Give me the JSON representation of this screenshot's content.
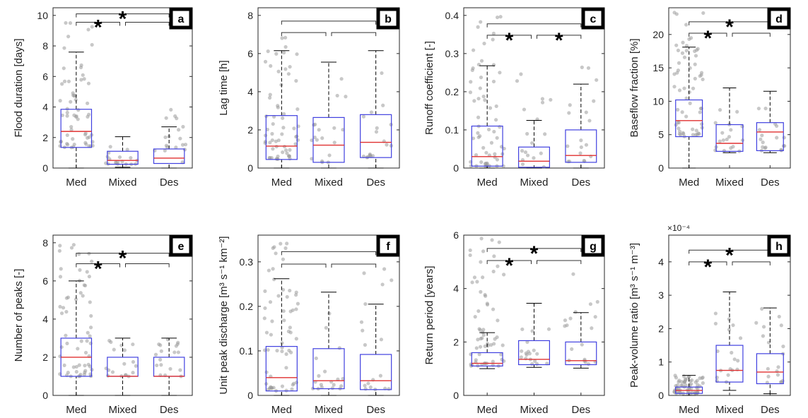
{
  "chart_data": [
    {
      "type": "box",
      "panel": "a",
      "ylabel": "Flood duration [days]",
      "ylim": [
        0,
        10.5
      ],
      "yticks": [
        0,
        2,
        4,
        6,
        8,
        10
      ],
      "tick_labels": [
        "0",
        "2",
        "4",
        "6",
        "8",
        "10"
      ],
      "categories": [
        "Med",
        "Mixed",
        "Des"
      ],
      "boxes": [
        {
          "min": 0,
          "q1": 1.35,
          "median": 2.4,
          "q3": 3.85,
          "max": 7.6
        },
        {
          "min": 0.05,
          "q1": 0.25,
          "median": 0.5,
          "q3": 1.1,
          "max": 2.05
        },
        {
          "min": 0,
          "q1": 0.3,
          "median": 0.65,
          "q3": 1.25,
          "max": 2.7
        }
      ],
      "scatter_max": [
        10.2,
        2.0,
        4.0
      ],
      "significance": [
        {
          "from": 0,
          "to": 1,
          "star": true
        },
        {
          "from": 1,
          "to": 2,
          "star": false
        },
        {
          "from": 0,
          "to": 2,
          "star": true
        }
      ],
      "brackets_y": [
        9.55,
        10.1
      ]
    },
    {
      "type": "box",
      "panel": "b",
      "ylabel": "Lag time [h]",
      "ylim": [
        0,
        8.4
      ],
      "yticks": [
        0,
        2,
        4,
        6,
        8
      ],
      "tick_labels": [
        "0",
        "2",
        "4",
        "6",
        "8"
      ],
      "categories": [
        "Med",
        "Mixed",
        "Des"
      ],
      "boxes": [
        {
          "min": 0,
          "q1": 0.45,
          "median": 1.15,
          "q3": 2.75,
          "max": 6.15
        },
        {
          "min": 0,
          "q1": 0.3,
          "median": 1.2,
          "q3": 2.65,
          "max": 5.55
        },
        {
          "min": 0,
          "q1": 0.55,
          "median": 1.35,
          "q3": 2.8,
          "max": 6.15
        }
      ],
      "scatter_max": [
        7.3,
        5.0,
        6.0
      ],
      "significance": [
        {
          "from": 0,
          "to": 1,
          "star": false
        },
        {
          "from": 1,
          "to": 2,
          "star": false
        },
        {
          "from": 0,
          "to": 2,
          "star": false
        }
      ],
      "brackets_y": [
        7.1,
        7.7
      ]
    },
    {
      "type": "box",
      "panel": "c",
      "ylabel": "Runoff coefficient [-]",
      "ylim": [
        0,
        0.42
      ],
      "yticks": [
        0,
        0.1,
        0.2,
        0.3,
        0.4
      ],
      "tick_labels": [
        "0",
        "0.1",
        "0.2",
        "0.3",
        "0.4"
      ],
      "categories": [
        "Med",
        "Mixed",
        "Des"
      ],
      "boxes": [
        {
          "min": 0,
          "q1": 0.005,
          "median": 0.03,
          "q3": 0.11,
          "max": 0.268
        },
        {
          "min": 0,
          "q1": 0.002,
          "median": 0.018,
          "q3": 0.055,
          "max": 0.125
        },
        {
          "min": 0,
          "q1": 0.015,
          "median": 0.033,
          "q3": 0.1,
          "max": 0.22
        }
      ],
      "scatter_max": [
        0.42,
        0.25,
        0.31
      ],
      "significance": [
        {
          "from": 0,
          "to": 1,
          "star": true
        },
        {
          "from": 1,
          "to": 2,
          "star": true
        },
        {
          "from": 0,
          "to": 2,
          "star": false
        }
      ],
      "brackets_y": [
        0.348,
        0.378
      ]
    },
    {
      "type": "box",
      "panel": "d",
      "ylabel": "Baseflow fraction [%]",
      "ylim": [
        0,
        24
      ],
      "yticks": [
        0,
        5,
        10,
        15,
        20
      ],
      "tick_labels": [
        "0",
        "5",
        "10",
        "15",
        "20"
      ],
      "categories": [
        "Med",
        "Mixed",
        "Des"
      ],
      "boxes": [
        {
          "min": 0,
          "q1": 4.7,
          "median": 7.1,
          "q3": 10.2,
          "max": 18.1
        },
        {
          "min": 2.3,
          "q1": 2.5,
          "median": 3.7,
          "q3": 6.5,
          "max": 12.0
        },
        {
          "min": 2.3,
          "q1": 2.6,
          "median": 5.4,
          "q3": 6.8,
          "max": 11.5
        }
      ],
      "scatter_max": [
        24.0,
        9.0,
        10.0
      ],
      "significance": [
        {
          "from": 0,
          "to": 1,
          "star": true
        },
        {
          "from": 1,
          "to": 2,
          "star": false
        },
        {
          "from": 0,
          "to": 2,
          "star": true
        }
      ],
      "brackets_y": [
        20.2,
        21.9
      ]
    },
    {
      "type": "box",
      "panel": "e",
      "ylabel": "Number of peaks [-]",
      "ylim": [
        0,
        8.4
      ],
      "yticks": [
        0,
        2,
        4,
        6,
        8
      ],
      "tick_labels": [
        "0",
        "2",
        "4",
        "6",
        "8"
      ],
      "categories": [
        "Med",
        "Mixed",
        "Des"
      ],
      "boxes": [
        {
          "min": 0,
          "q1": 1,
          "median": 2,
          "q3": 3,
          "max": 6
        },
        {
          "min": 0,
          "q1": 1,
          "median": 1,
          "q3": 2,
          "max": 3
        },
        {
          "min": 0,
          "q1": 1,
          "median": 1,
          "q3": 2,
          "max": 3
        }
      ],
      "scatter_max": [
        8.0,
        3.0,
        3.0
      ],
      "significance": [
        {
          "from": 0,
          "to": 1,
          "star": true
        },
        {
          "from": 1,
          "to": 2,
          "star": false
        },
        {
          "from": 0,
          "to": 2,
          "star": true
        }
      ],
      "brackets_y": [
        6.9,
        7.45
      ]
    },
    {
      "type": "box",
      "panel": "f",
      "ylabel": "Unit peak discharge [m³ s⁻¹ km⁻²]",
      "ylim": [
        0,
        0.36
      ],
      "yticks": [
        0,
        0.1,
        0.2,
        0.3
      ],
      "tick_labels": [
        "0",
        "0.1",
        "0.2",
        "0.3"
      ],
      "categories": [
        "Med",
        "Mixed",
        "Des"
      ],
      "boxes": [
        {
          "min": 0,
          "q1": 0.01,
          "median": 0.04,
          "q3": 0.11,
          "max": 0.262
        },
        {
          "min": 0,
          "q1": 0.015,
          "median": 0.033,
          "q3": 0.105,
          "max": 0.232
        },
        {
          "min": 0,
          "q1": 0.013,
          "median": 0.033,
          "q3": 0.092,
          "max": 0.205
        }
      ],
      "scatter_max": [
        0.35,
        0.19,
        0.29
      ],
      "significance": [
        {
          "from": 0,
          "to": 1,
          "star": false
        },
        {
          "from": 1,
          "to": 2,
          "star": false
        },
        {
          "from": 0,
          "to": 2,
          "star": false
        }
      ],
      "brackets_y": [
        0.295,
        0.323
      ]
    },
    {
      "type": "box",
      "panel": "g",
      "ylabel": "Return period [years]",
      "ylim": [
        0,
        6
      ],
      "yticks": [
        0,
        2,
        4,
        6
      ],
      "tick_labels": [
        "0",
        "2",
        "4",
        "6"
      ],
      "categories": [
        "Med",
        "Mixed",
        "Des"
      ],
      "boxes": [
        {
          "min": 1.0,
          "q1": 1.1,
          "median": 1.2,
          "q3": 1.6,
          "max": 2.35
        },
        {
          "min": 1.05,
          "q1": 1.15,
          "median": 1.35,
          "q3": 2.05,
          "max": 3.45
        },
        {
          "min": 1.02,
          "q1": 1.15,
          "median": 1.3,
          "q3": 2.0,
          "max": 3.1
        }
      ],
      "scatter_max": [
        6.0,
        2.5,
        5.5
      ],
      "significance": [
        {
          "from": 0,
          "to": 1,
          "star": true
        },
        {
          "from": 1,
          "to": 2,
          "star": false
        },
        {
          "from": 0,
          "to": 2,
          "star": true
        }
      ],
      "brackets_y": [
        5.05,
        5.5
      ]
    },
    {
      "type": "box",
      "panel": "h",
      "ylabel": "Peak-volume ratio [m³ s⁻¹ m⁻³]",
      "exponent": "×10⁻⁴",
      "ylim": [
        0,
        4.8
      ],
      "yticks": [
        0,
        1,
        2,
        3,
        4
      ],
      "tick_labels": [
        "0",
        "1",
        "2",
        "3",
        "4"
      ],
      "categories": [
        "Med",
        "Mixed",
        "Des"
      ],
      "boxes": [
        {
          "min": 0,
          "q1": 0.06,
          "median": 0.15,
          "q3": 0.25,
          "max": 0.6
        },
        {
          "min": 0.15,
          "q1": 0.4,
          "median": 0.75,
          "q3": 1.5,
          "max": 3.1
        },
        {
          "min": 0.05,
          "q1": 0.35,
          "median": 0.7,
          "q3": 1.25,
          "max": 2.62
        }
      ],
      "scatter_max": [
        0.6,
        2.8,
        2.6
      ],
      "significance": [
        {
          "from": 0,
          "to": 1,
          "star": true
        },
        {
          "from": 1,
          "to": 2,
          "star": false
        },
        {
          "from": 0,
          "to": 2,
          "star": true
        }
      ],
      "brackets_y": [
        4.0,
        4.35
      ]
    }
  ],
  "colors": {
    "box": "#4040e0",
    "median": "#e03030",
    "whisker": "#000000",
    "points": "#9a9a9a"
  }
}
